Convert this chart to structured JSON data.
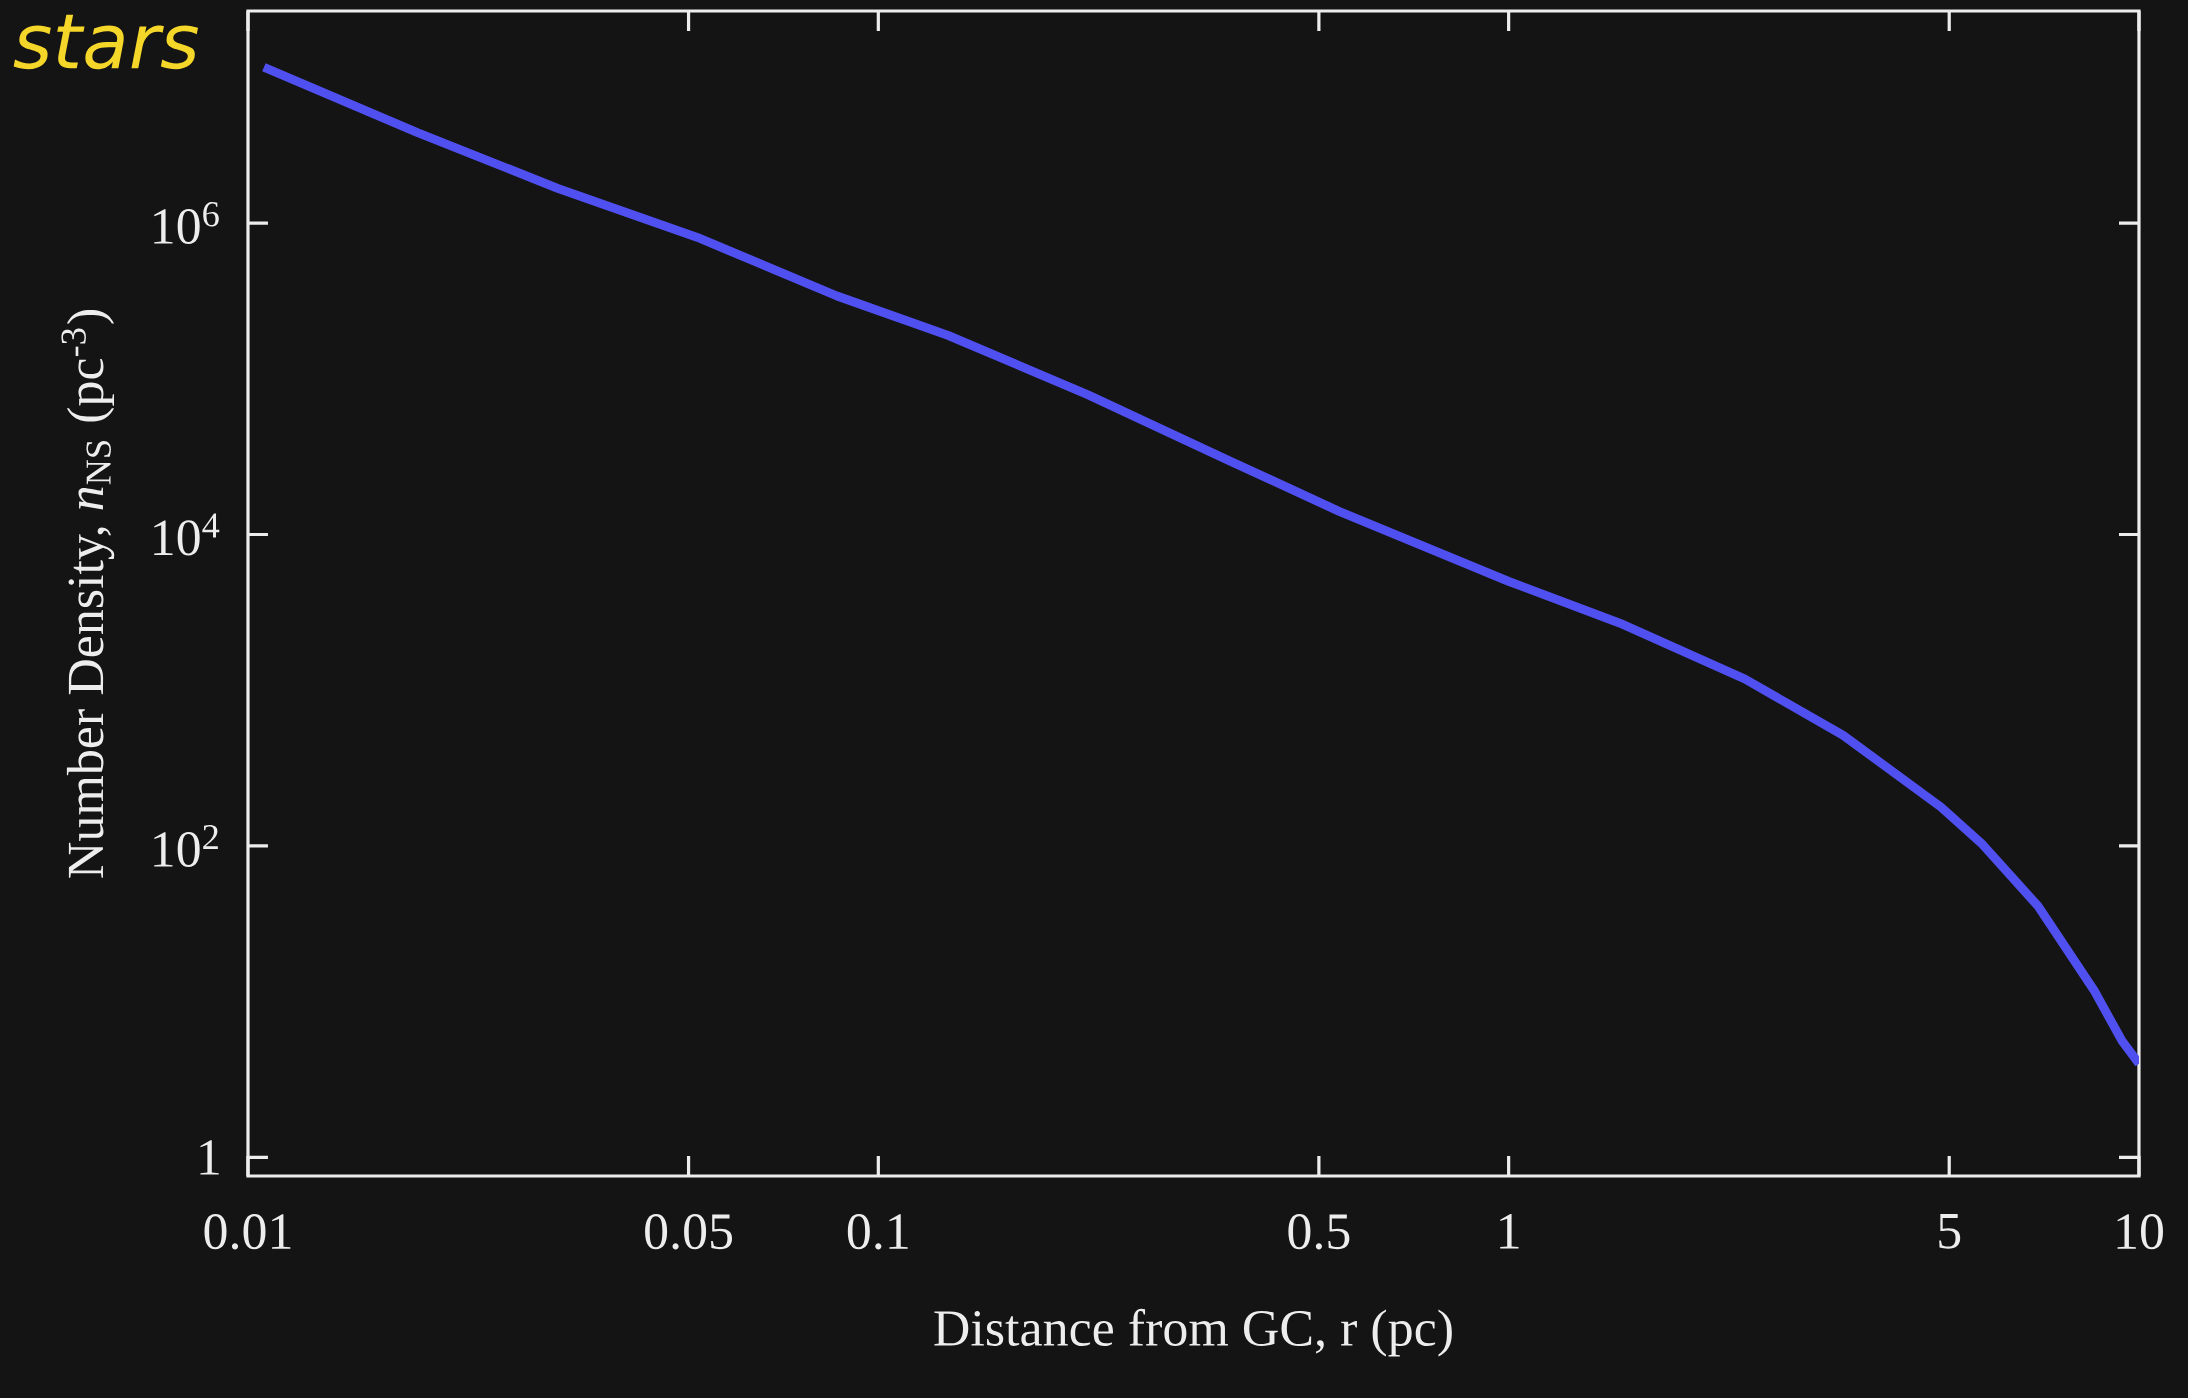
{
  "chart_data": {
    "type": "line",
    "xlabel": "Distance from GC, r (pc)",
    "ylabel": "Number Density, *n*$_{NS}$ (pc$^{-3}$)",
    "annotations": [
      "stars"
    ],
    "log": "xy",
    "xlim": [
      0.01,
      10
    ],
    "ylim": [
      0.76,
      23000000
    ],
    "xticks": [
      0.01,
      0.05,
      0.1,
      0.5,
      1,
      5,
      10
    ],
    "yticks": [
      1,
      {
        "value": 100,
        "label": "10$^{2}$"
      },
      {
        "value": 10000,
        "label": "10$^{4}$"
      },
      {
        "value": 1000000,
        "label": "10$^{6}$"
      }
    ],
    "series": [
      {
        "color": "#5050f0",
        "x": [
          0.0106,
          0.0186,
          0.031,
          0.0516,
          0.086,
          0.129,
          0.215,
          0.359,
          0.54,
          1.0,
          1.5,
          2.37,
          3.39,
          4.85,
          5.65,
          6.92,
          8.49,
          9.4,
          10
        ],
        "values": [
          10000000,
          3800000,
          1670000,
          810000,
          340000,
          190000,
          79000,
          30000,
          14000,
          5000,
          2700,
          1180,
          515,
          178,
          102,
          41,
          11.8,
          5.6,
          4.0
        ]
      }
    ]
  }
}
